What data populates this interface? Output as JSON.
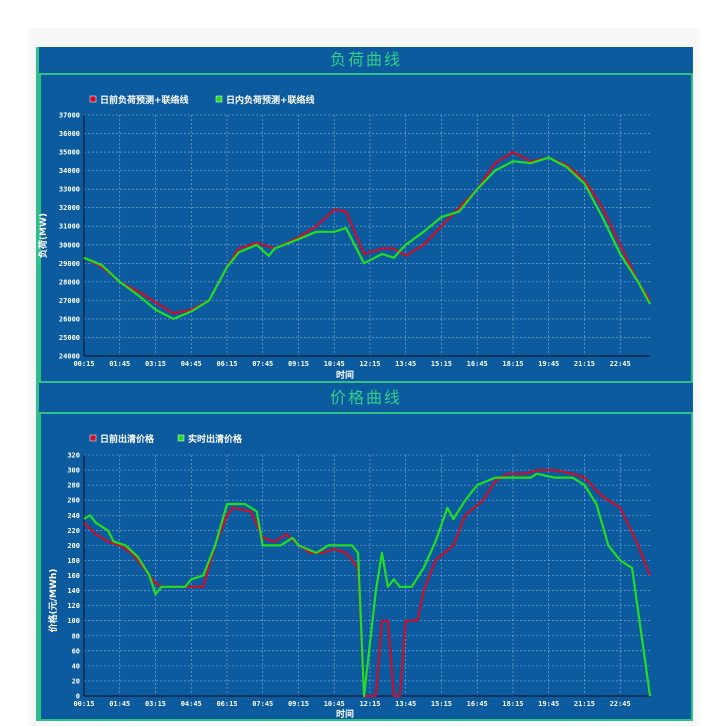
{
  "chart_data": [
    {
      "type": "line",
      "title": "负荷曲线",
      "xlabel": "时间",
      "ylabel": "负荷(MW)",
      "ylim": [
        24000,
        37000
      ],
      "yticks": [
        24000,
        25000,
        26000,
        27000,
        28000,
        29000,
        30000,
        31000,
        32000,
        33000,
        34000,
        35000,
        36000,
        37000
      ],
      "xticks": [
        "00:15",
        "01:45",
        "03:15",
        "04:45",
        "06:15",
        "07:45",
        "09:15",
        "10:45",
        "12:15",
        "13:45",
        "15:15",
        "16:45",
        "18:15",
        "19:45",
        "21:15",
        "22:45"
      ],
      "grid": true,
      "legend_position": "top-left",
      "series": [
        {
          "name": "日前负荷预测+联络线",
          "color": "#c8102e",
          "points": [
            [
              "00:15",
              29300
            ],
            [
              "01:00",
              28800
            ],
            [
              "01:45",
              28000
            ],
            [
              "02:30",
              27500
            ],
            [
              "03:15",
              26900
            ],
            [
              "04:00",
              26300
            ],
            [
              "04:45",
              26500
            ],
            [
              "05:30",
              27000
            ],
            [
              "06:15",
              28800
            ],
            [
              "06:45",
              29800
            ],
            [
              "07:30",
              30100
            ],
            [
              "08:15",
              29800
            ],
            [
              "09:15",
              30400
            ],
            [
              "10:00",
              31000
            ],
            [
              "10:45",
              31900
            ],
            [
              "11:15",
              31800
            ],
            [
              "12:00",
              29500
            ],
            [
              "12:45",
              29800
            ],
            [
              "13:15",
              29800
            ],
            [
              "13:45",
              29400
            ],
            [
              "14:30",
              30000
            ],
            [
              "15:15",
              31000
            ],
            [
              "16:00",
              32000
            ],
            [
              "16:45",
              33000
            ],
            [
              "17:30",
              34400
            ],
            [
              "18:15",
              35000
            ],
            [
              "19:00",
              34500
            ],
            [
              "19:45",
              34700
            ],
            [
              "20:30",
              34300
            ],
            [
              "21:15",
              33500
            ],
            [
              "22:00",
              32000
            ],
            [
              "22:45",
              30000
            ],
            [
              "23:30",
              28000
            ],
            [
              "24:00",
              27000
            ]
          ]
        },
        {
          "name": "日内负荷预测+联络线",
          "color": "#22dd22",
          "points": [
            [
              "00:15",
              29300
            ],
            [
              "01:00",
              28900
            ],
            [
              "01:45",
              28000
            ],
            [
              "02:30",
              27300
            ],
            [
              "03:15",
              26500
            ],
            [
              "04:00",
              26000
            ],
            [
              "04:45",
              26400
            ],
            [
              "05:30",
              27000
            ],
            [
              "06:15",
              28800
            ],
            [
              "06:45",
              29600
            ],
            [
              "07:30",
              30000
            ],
            [
              "08:00",
              29400
            ],
            [
              "08:15",
              29800
            ],
            [
              "09:15",
              30300
            ],
            [
              "10:00",
              30700
            ],
            [
              "10:45",
              30700
            ],
            [
              "11:15",
              30900
            ],
            [
              "12:00",
              29000
            ],
            [
              "12:45",
              29500
            ],
            [
              "13:15",
              29300
            ],
            [
              "13:45",
              30000
            ],
            [
              "14:30",
              30700
            ],
            [
              "15:15",
              31500
            ],
            [
              "16:00",
              31800
            ],
            [
              "16:45",
              33000
            ],
            [
              "17:30",
              34000
            ],
            [
              "18:15",
              34500
            ],
            [
              "19:00",
              34400
            ],
            [
              "19:45",
              34700
            ],
            [
              "20:30",
              34200
            ],
            [
              "21:15",
              33300
            ],
            [
              "22:00",
              31500
            ],
            [
              "22:45",
              29500
            ],
            [
              "23:30",
              28000
            ],
            [
              "24:00",
              26800
            ]
          ]
        }
      ]
    },
    {
      "type": "line",
      "title": "价格曲线",
      "xlabel": "时间",
      "ylabel": "价格(元/MWh)",
      "ylim": [
        0,
        320
      ],
      "yticks": [
        0,
        20,
        40,
        60,
        80,
        100,
        120,
        140,
        160,
        180,
        200,
        220,
        240,
        260,
        280,
        300,
        320
      ],
      "xticks": [
        "00:15",
        "01:45",
        "03:15",
        "04:45",
        "06:15",
        "07:45",
        "09:15",
        "10:45",
        "12:15",
        "13:45",
        "15:15",
        "16:45",
        "18:15",
        "19:45",
        "21:15",
        "22:45"
      ],
      "grid": true,
      "legend_position": "top-left",
      "series": [
        {
          "name": "日前出清价格",
          "color": "#c8102e",
          "points": [
            [
              "00:15",
              230
            ],
            [
              "00:45",
              215
            ],
            [
              "01:15",
              205
            ],
            [
              "01:45",
              200
            ],
            [
              "02:15",
              190
            ],
            [
              "02:45",
              170
            ],
            [
              "03:15",
              150
            ],
            [
              "03:30",
              145
            ],
            [
              "04:45",
              145
            ],
            [
              "05:15",
              145
            ],
            [
              "05:45",
              200
            ],
            [
              "06:15",
              240
            ],
            [
              "06:30",
              250
            ],
            [
              "07:15",
              245
            ],
            [
              "07:45",
              210
            ],
            [
              "08:15",
              205
            ],
            [
              "08:45",
              215
            ],
            [
              "09:15",
              200
            ],
            [
              "09:45",
              190
            ],
            [
              "10:15",
              190
            ],
            [
              "10:45",
              195
            ],
            [
              "11:15",
              190
            ],
            [
              "11:45",
              170
            ],
            [
              "12:00",
              0
            ],
            [
              "12:30",
              0
            ],
            [
              "12:45",
              100
            ],
            [
              "13:00",
              100
            ],
            [
              "13:15",
              0
            ],
            [
              "13:30",
              0
            ],
            [
              "13:45",
              100
            ],
            [
              "14:15",
              100
            ],
            [
              "14:30",
              140
            ],
            [
              "15:00",
              180
            ],
            [
              "15:45",
              200
            ],
            [
              "16:15",
              240
            ],
            [
              "17:00",
              260
            ],
            [
              "17:30",
              285
            ],
            [
              "18:00",
              295
            ],
            [
              "18:45",
              295
            ],
            [
              "19:15",
              300
            ],
            [
              "20:00",
              300
            ],
            [
              "20:45",
              295
            ],
            [
              "21:15",
              290
            ],
            [
              "22:00",
              265
            ],
            [
              "22:45",
              250
            ],
            [
              "23:30",
              200
            ],
            [
              "24:00",
              160
            ]
          ]
        },
        {
          "name": "实时出清价格",
          "color": "#22dd22",
          "points": [
            [
              "00:15",
              235
            ],
            [
              "00:30",
              240
            ],
            [
              "00:45",
              230
            ],
            [
              "01:15",
              220
            ],
            [
              "01:30",
              205
            ],
            [
              "02:00",
              200
            ],
            [
              "02:30",
              185
            ],
            [
              "03:00",
              160
            ],
            [
              "03:15",
              135
            ],
            [
              "03:30",
              145
            ],
            [
              "04:30",
              145
            ],
            [
              "04:45",
              155
            ],
            [
              "05:15",
              160
            ],
            [
              "05:45",
              200
            ],
            [
              "06:15",
              255
            ],
            [
              "07:00",
              255
            ],
            [
              "07:30",
              245
            ],
            [
              "07:45",
              200
            ],
            [
              "08:30",
              200
            ],
            [
              "09:00",
              210
            ],
            [
              "09:15",
              200
            ],
            [
              "10:00",
              190
            ],
            [
              "10:30",
              200
            ],
            [
              "11:30",
              200
            ],
            [
              "11:45",
              190
            ],
            [
              "12:00",
              0
            ],
            [
              "12:30",
              140
            ],
            [
              "12:45",
              190
            ],
            [
              "13:00",
              145
            ],
            [
              "13:15",
              155
            ],
            [
              "13:30",
              145
            ],
            [
              "14:00",
              145
            ],
            [
              "14:30",
              170
            ],
            [
              "15:00",
              205
            ],
            [
              "15:30",
              250
            ],
            [
              "15:45",
              235
            ],
            [
              "16:15",
              260
            ],
            [
              "16:45",
              280
            ],
            [
              "17:30",
              290
            ],
            [
              "18:15",
              290
            ],
            [
              "19:00",
              290
            ],
            [
              "19:15",
              295
            ],
            [
              "20:00",
              290
            ],
            [
              "20:45",
              290
            ],
            [
              "21:15",
              280
            ],
            [
              "21:45",
              255
            ],
            [
              "22:15",
              200
            ],
            [
              "22:45",
              180
            ],
            [
              "23:15",
              170
            ],
            [
              "24:00",
              0
            ]
          ]
        }
      ]
    }
  ]
}
